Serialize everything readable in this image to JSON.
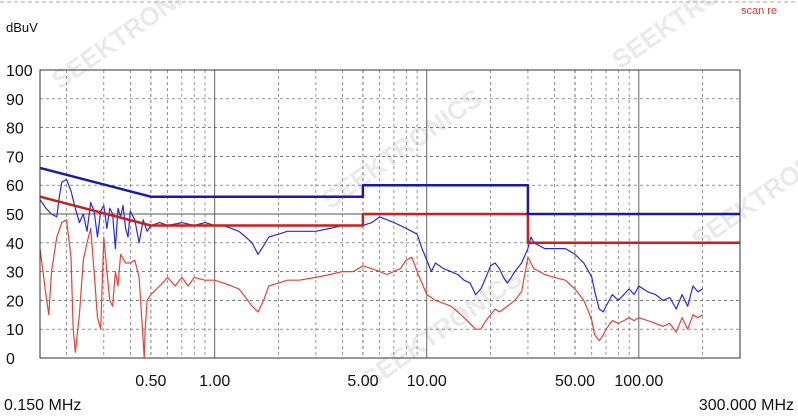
{
  "chart_data": {
    "type": "line",
    "title": "",
    "ylabel": "dBuV",
    "xlabel": "",
    "x_scale": "log",
    "xlim": [
      0.15,
      300
    ],
    "ylim": [
      0,
      100
    ],
    "grid": true,
    "legend": "none",
    "corner_text": "scan re",
    "watermark": "SEEKTRONICS",
    "x_tick_labels": [
      {
        "value": 0.15,
        "label": "0.150 MHz"
      },
      {
        "value": 0.5,
        "label": "0.50"
      },
      {
        "value": 1,
        "label": "1.00"
      },
      {
        "value": 5,
        "label": "5.00"
      },
      {
        "value": 10,
        "label": "10.00"
      },
      {
        "value": 50,
        "label": "50.00"
      },
      {
        "value": 100,
        "label": "100.00"
      },
      {
        "value": 300,
        "label": "300.000 MHz"
      }
    ],
    "y_ticks": [
      0,
      10,
      20,
      30,
      40,
      50,
      60,
      70,
      80,
      90,
      100
    ],
    "series": [
      {
        "role": "limit-upper",
        "color": "#1a1aa6",
        "width": 2.5,
        "points": [
          [
            0.15,
            66
          ],
          [
            0.5,
            56
          ],
          [
            5,
            56
          ],
          [
            5,
            60
          ],
          [
            30,
            60
          ],
          [
            30,
            50
          ],
          [
            300,
            50
          ]
        ]
      },
      {
        "role": "limit-lower",
        "color": "#c8201c",
        "width": 2.5,
        "points": [
          [
            0.15,
            56
          ],
          [
            0.5,
            46
          ],
          [
            5,
            46
          ],
          [
            5,
            50
          ],
          [
            30,
            50
          ],
          [
            30,
            40
          ],
          [
            300,
            40
          ]
        ]
      },
      {
        "role": "measured-upper",
        "color": "#2a2ad6",
        "width": 1.2,
        "points": [
          [
            0.15,
            55
          ],
          [
            0.16,
            52
          ],
          [
            0.17,
            50
          ],
          [
            0.18,
            49
          ],
          [
            0.185,
            56
          ],
          [
            0.19,
            61
          ],
          [
            0.2,
            62
          ],
          [
            0.21,
            58
          ],
          [
            0.22,
            52
          ],
          [
            0.23,
            47
          ],
          [
            0.24,
            50
          ],
          [
            0.25,
            44
          ],
          [
            0.26,
            54
          ],
          [
            0.27,
            51
          ],
          [
            0.28,
            42
          ],
          [
            0.29,
            51
          ],
          [
            0.3,
            53
          ],
          [
            0.31,
            45
          ],
          [
            0.32,
            52
          ],
          [
            0.33,
            50
          ],
          [
            0.34,
            38
          ],
          [
            0.35,
            52
          ],
          [
            0.36,
            49
          ],
          [
            0.37,
            53
          ],
          [
            0.38,
            45
          ],
          [
            0.39,
            42
          ],
          [
            0.4,
            51
          ],
          [
            0.42,
            48
          ],
          [
            0.44,
            40
          ],
          [
            0.46,
            48
          ],
          [
            0.48,
            44
          ],
          [
            0.5,
            46
          ],
          [
            0.55,
            47
          ],
          [
            0.6,
            46
          ],
          [
            0.7,
            47
          ],
          [
            0.8,
            46
          ],
          [
            0.9,
            47
          ],
          [
            1,
            46
          ],
          [
            1.1,
            46
          ],
          [
            1.2,
            45
          ],
          [
            1.3,
            44
          ],
          [
            1.4,
            42
          ],
          [
            1.5,
            40
          ],
          [
            1.6,
            36
          ],
          [
            1.7,
            39
          ],
          [
            1.8,
            42
          ],
          [
            2,
            43
          ],
          [
            2.2,
            44
          ],
          [
            2.5,
            44
          ],
          [
            3,
            44
          ],
          [
            3.5,
            45
          ],
          [
            4,
            46
          ],
          [
            4.5,
            46
          ],
          [
            5,
            46
          ],
          [
            5.5,
            47
          ],
          [
            6,
            49
          ],
          [
            6.5,
            48
          ],
          [
            7,
            47
          ],
          [
            7.5,
            46
          ],
          [
            8,
            45
          ],
          [
            8.5,
            44
          ],
          [
            9,
            43
          ],
          [
            9.5,
            38
          ],
          [
            10,
            34
          ],
          [
            10.5,
            30
          ],
          [
            11,
            33
          ],
          [
            12,
            31
          ],
          [
            13,
            30
          ],
          [
            14,
            29
          ],
          [
            15,
            27
          ],
          [
            16,
            26
          ],
          [
            17,
            22
          ],
          [
            18,
            24
          ],
          [
            19,
            28
          ],
          [
            20,
            32
          ],
          [
            21,
            33
          ],
          [
            22,
            31
          ],
          [
            23,
            28
          ],
          [
            24,
            26
          ],
          [
            25,
            28
          ],
          [
            26,
            30
          ],
          [
            28,
            33
          ],
          [
            30,
            38
          ],
          [
            31,
            42
          ],
          [
            32,
            40
          ],
          [
            34,
            39
          ],
          [
            36,
            38
          ],
          [
            40,
            38
          ],
          [
            45,
            38
          ],
          [
            50,
            36
          ],
          [
            55,
            33
          ],
          [
            58,
            30
          ],
          [
            60,
            28
          ],
          [
            62,
            23
          ],
          [
            65,
            17
          ],
          [
            68,
            16
          ],
          [
            70,
            18
          ],
          [
            75,
            22
          ],
          [
            80,
            20
          ],
          [
            85,
            22
          ],
          [
            90,
            24
          ],
          [
            95,
            22
          ],
          [
            100,
            25
          ],
          [
            110,
            23
          ],
          [
            120,
            22
          ],
          [
            130,
            20
          ],
          [
            140,
            21
          ],
          [
            150,
            17
          ],
          [
            160,
            22
          ],
          [
            170,
            18
          ],
          [
            180,
            25
          ],
          [
            190,
            23
          ],
          [
            200,
            24
          ]
        ]
      },
      {
        "role": "measured-lower",
        "color": "#e0443c",
        "width": 1.2,
        "points": [
          [
            0.15,
            38
          ],
          [
            0.155,
            30
          ],
          [
            0.16,
            22
          ],
          [
            0.165,
            15
          ],
          [
            0.17,
            30
          ],
          [
            0.18,
            42
          ],
          [
            0.19,
            47
          ],
          [
            0.2,
            48
          ],
          [
            0.21,
            35
          ],
          [
            0.215,
            10
          ],
          [
            0.22,
            2
          ],
          [
            0.23,
            15
          ],
          [
            0.24,
            34
          ],
          [
            0.25,
            40
          ],
          [
            0.26,
            45
          ],
          [
            0.27,
            30
          ],
          [
            0.28,
            14
          ],
          [
            0.29,
            10
          ],
          [
            0.3,
            42
          ],
          [
            0.31,
            30
          ],
          [
            0.32,
            20
          ],
          [
            0.33,
            18
          ],
          [
            0.34,
            30
          ],
          [
            0.35,
            25
          ],
          [
            0.36,
            36
          ],
          [
            0.38,
            33
          ],
          [
            0.4,
            33
          ],
          [
            0.42,
            34
          ],
          [
            0.44,
            28
          ],
          [
            0.46,
            6
          ],
          [
            0.465,
            0
          ],
          [
            0.47,
            10
          ],
          [
            0.48,
            20
          ],
          [
            0.5,
            22
          ],
          [
            0.55,
            25
          ],
          [
            0.6,
            28
          ],
          [
            0.65,
            25
          ],
          [
            0.7,
            28
          ],
          [
            0.75,
            25
          ],
          [
            0.8,
            28
          ],
          [
            0.9,
            27
          ],
          [
            1,
            27
          ],
          [
            1.1,
            26
          ],
          [
            1.2,
            25
          ],
          [
            1.3,
            24
          ],
          [
            1.4,
            21
          ],
          [
            1.5,
            18
          ],
          [
            1.6,
            16
          ],
          [
            1.7,
            20
          ],
          [
            1.8,
            25
          ],
          [
            2,
            26
          ],
          [
            2.2,
            27
          ],
          [
            2.5,
            27
          ],
          [
            3,
            28
          ],
          [
            3.5,
            29
          ],
          [
            4,
            30
          ],
          [
            4.5,
            30
          ],
          [
            5,
            32
          ],
          [
            5.5,
            31
          ],
          [
            6,
            30
          ],
          [
            6.5,
            29
          ],
          [
            7,
            30
          ],
          [
            7.5,
            31
          ],
          [
            8,
            34
          ],
          [
            8.5,
            35
          ],
          [
            9,
            30
          ],
          [
            9.5,
            26
          ],
          [
            10,
            22
          ],
          [
            11,
            20
          ],
          [
            12,
            19
          ],
          [
            13,
            18
          ],
          [
            14,
            16
          ],
          [
            15,
            14
          ],
          [
            16,
            12
          ],
          [
            17,
            10
          ],
          [
            18,
            10
          ],
          [
            19,
            13
          ],
          [
            20,
            15
          ],
          [
            21,
            17
          ],
          [
            22,
            16
          ],
          [
            24,
            18
          ],
          [
            26,
            20
          ],
          [
            28,
            23
          ],
          [
            30,
            35
          ],
          [
            31,
            33
          ],
          [
            32,
            31
          ],
          [
            34,
            30
          ],
          [
            36,
            29
          ],
          [
            40,
            28
          ],
          [
            45,
            27
          ],
          [
            50,
            24
          ],
          [
            55,
            20
          ],
          [
            58,
            16
          ],
          [
            60,
            13
          ],
          [
            62,
            8
          ],
          [
            65,
            6
          ],
          [
            68,
            8
          ],
          [
            70,
            10
          ],
          [
            75,
            13
          ],
          [
            80,
            12
          ],
          [
            85,
            13
          ],
          [
            90,
            14
          ],
          [
            95,
            13
          ],
          [
            100,
            14
          ],
          [
            110,
            13
          ],
          [
            120,
            12
          ],
          [
            130,
            11
          ],
          [
            140,
            12
          ],
          [
            150,
            9
          ],
          [
            160,
            14
          ],
          [
            170,
            10
          ],
          [
            180,
            15
          ],
          [
            190,
            14
          ],
          [
            200,
            15
          ]
        ]
      }
    ]
  }
}
